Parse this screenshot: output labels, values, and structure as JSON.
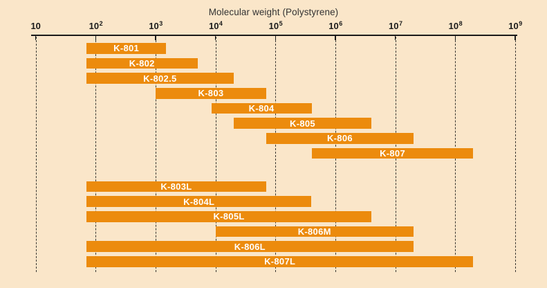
{
  "chart_data": {
    "type": "bar",
    "subtype": "horizontal-range",
    "title": "Molecular weight (Polystyrene)",
    "x_axis": {
      "scale": "log10",
      "min": 10,
      "max": 1000000000,
      "tick_values": [
        10,
        100,
        1000,
        10000,
        100000,
        1000000,
        10000000,
        100000000,
        1000000000
      ],
      "tick_labels": [
        "10",
        "10^2",
        "10^3",
        "10^4",
        "10^5",
        "10^6",
        "10^7",
        "10^8",
        "10^9"
      ]
    },
    "grid": "dashed-vertical-per-decade",
    "legend": "none",
    "groups": [
      {
        "name": "upper-group",
        "bars": [
          {
            "label": "K-801",
            "mw_min": 70,
            "mw_max": 1500
          },
          {
            "label": "K-802",
            "mw_min": 70,
            "mw_max": 5000
          },
          {
            "label": "K-802.5",
            "mw_min": 70,
            "mw_max": 20000
          },
          {
            "label": "K-803",
            "mw_min": 1000,
            "mw_max": 70000
          },
          {
            "label": "K-804",
            "mw_min": 8500,
            "mw_max": 400000
          },
          {
            "label": "K-805",
            "mw_min": 20000,
            "mw_max": 4000000
          },
          {
            "label": "K-806",
            "mw_min": 70000,
            "mw_max": 20000000
          },
          {
            "label": "K-807",
            "mw_min": 400000,
            "mw_max": 200000000
          }
        ]
      },
      {
        "name": "lower-group",
        "bars": [
          {
            "label": "K-803L",
            "mw_min": 70,
            "mw_max": 70000
          },
          {
            "label": "K-804L",
            "mw_min": 70,
            "mw_max": 400000
          },
          {
            "label": "K-805L",
            "mw_min": 70,
            "mw_max": 4000000
          },
          {
            "label": "K-806M",
            "mw_min": 10000,
            "mw_max": 20000000
          },
          {
            "label": "K-806L",
            "mw_min": 70,
            "mw_max": 20000000
          },
          {
            "label": "K-807L",
            "mw_min": 70,
            "mw_max": 200000000
          }
        ]
      }
    ],
    "colors": {
      "background": "#FAE6C9",
      "bar": "#EC8B0D",
      "bar_label": "#FFFFFF",
      "axis": "#1A1A1A",
      "gridline": "#191919",
      "title_text": "#333333"
    }
  }
}
